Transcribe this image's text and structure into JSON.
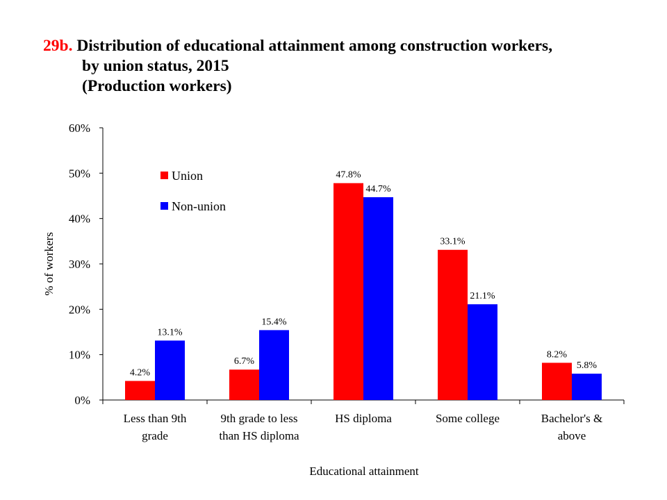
{
  "header": {
    "number": "29b.",
    "title_line1": "Distribution of educational attainment among construction workers,",
    "title_line2": "by union status, 2015",
    "title_line3": "(Production workers)"
  },
  "chart_data": {
    "type": "bar",
    "categories": [
      [
        "Less than 9th",
        "grade"
      ],
      [
        "9th grade to less",
        "than HS diploma"
      ],
      [
        "HS diploma"
      ],
      [
        "Some college"
      ],
      [
        "Bachelor's &",
        "above"
      ]
    ],
    "series": [
      {
        "name": "Union",
        "color": "#ff0000",
        "values": [
          4.2,
          6.7,
          47.8,
          33.1,
          8.2
        ],
        "labels": [
          "4.2%",
          "6.7%",
          "47.8%",
          "33.1%",
          "8.2%"
        ]
      },
      {
        "name": "Non-union",
        "color": "#0000ff",
        "values": [
          13.1,
          15.4,
          44.7,
          21.1,
          5.8
        ],
        "labels": [
          "13.1%",
          "15.4%",
          "44.7%",
          "21.1%",
          "5.8%"
        ]
      }
    ],
    "xlabel": "Educational attainment",
    "ylabel": "% of workers",
    "ylim": [
      0,
      60
    ],
    "yticks": [
      0,
      10,
      20,
      30,
      40,
      50,
      60
    ],
    "ytick_labels": [
      "0%",
      "10%",
      "20%",
      "30%",
      "40%",
      "50%",
      "60%"
    ],
    "grid": false,
    "legend": "upper-left"
  }
}
